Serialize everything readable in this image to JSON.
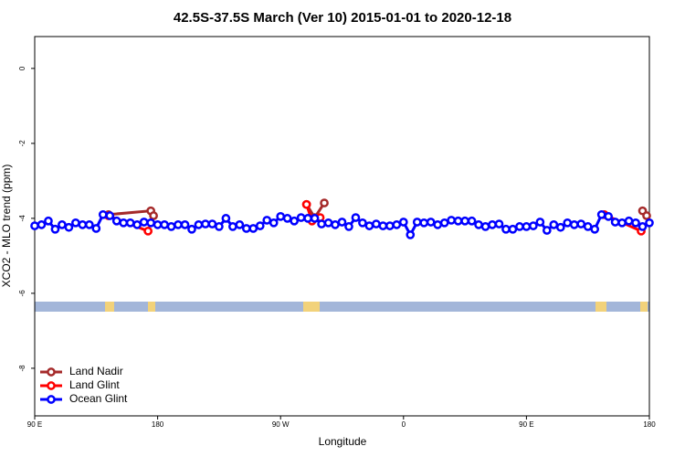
{
  "chart_data": {
    "type": "line",
    "title": "42.5S-37.5S March (Ver 10)   2015-01-01 to 2020-12-18",
    "xlabel": "Longitude",
    "ylabel": "XCO2 - MLO trend (ppm)",
    "xlim": [
      90,
      540
    ],
    "xticks": [
      {
        "value": 90,
        "label": "90 E"
      },
      180,
      {
        "value": 270,
        "label": "90 W"
      },
      {
        "value": 360,
        "label": "0"
      },
      {
        "value": 450,
        "label": "90 E"
      },
      {
        "value": 540,
        "label": "180"
      }
    ],
    "ylim": [
      -9.27,
      0.85
    ],
    "yticks": [
      0,
      -2,
      -4,
      -6,
      -8
    ],
    "legend": "bottom-left",
    "series": [
      {
        "name": "Land Nadir",
        "color": "#a52a2a",
        "x": [
          144,
          175,
          177,
          230,
          289,
          295,
          302,
          420,
          535,
          538
        ],
        "values": [
          -3.9,
          -3.8,
          -3.93,
          null,
          -3.63,
          -3.98,
          -3.59,
          null,
          -3.8,
          -3.93
        ]
      },
      {
        "name": "Land Glint",
        "color": "#ff0000",
        "x": [
          144,
          173,
          230,
          289,
          293,
          299,
          420,
          507,
          534
        ],
        "values": [
          -3.93,
          -4.34,
          null,
          -3.63,
          -4.07,
          -3.98,
          null,
          -3.9,
          -4.34
        ]
      },
      {
        "name": "Ocean Glint",
        "color": "#0000ff",
        "x": [
          90,
          95,
          100,
          105,
          110,
          115,
          120,
          125,
          130,
          135,
          140,
          145,
          150,
          155,
          160,
          165,
          170,
          175,
          180,
          185,
          190,
          195,
          200,
          205,
          210,
          215,
          220,
          225,
          230,
          235,
          240,
          245,
          250,
          255,
          260,
          265,
          270,
          275,
          280,
          285,
          290,
          295,
          300,
          305,
          310,
          315,
          320,
          325,
          330,
          335,
          340,
          345,
          350,
          355,
          360,
          365,
          370,
          375,
          380,
          385,
          390,
          395,
          400,
          405,
          410,
          415,
          420,
          425,
          430,
          435,
          440,
          445,
          450,
          455,
          460,
          465,
          470,
          475,
          480,
          485,
          490,
          495,
          500,
          505,
          510,
          515,
          520,
          525,
          530,
          535,
          540
        ],
        "values": [
          -4.2,
          -4.17,
          -4.07,
          -4.29,
          -4.17,
          -4.24,
          -4.12,
          -4.17,
          -4.17,
          -4.27,
          -3.9,
          -3.93,
          -4.07,
          -4.12,
          -4.12,
          -4.17,
          -4.1,
          -4.12,
          -4.17,
          -4.17,
          -4.22,
          -4.17,
          -4.17,
          -4.29,
          -4.17,
          -4.15,
          -4.15,
          -4.22,
          -4.0,
          -4.22,
          -4.17,
          -4.27,
          -4.27,
          -4.2,
          -4.05,
          -4.12,
          -3.95,
          -4.0,
          -4.07,
          -3.98,
          -4.0,
          -4.0,
          -4.15,
          -4.12,
          -4.17,
          -4.1,
          -4.22,
          -3.98,
          -4.12,
          -4.2,
          -4.15,
          -4.2,
          -4.2,
          -4.17,
          -4.1,
          -4.44,
          -4.1,
          -4.12,
          -4.1,
          -4.17,
          -4.12,
          -4.05,
          -4.07,
          -4.07,
          -4.07,
          -4.17,
          -4.22,
          -4.17,
          -4.15,
          -4.29,
          -4.29,
          -4.22,
          -4.22,
          -4.2,
          -4.1,
          -4.32,
          -4.17,
          -4.24,
          -4.12,
          -4.17,
          -4.15,
          -4.22,
          -4.29,
          -3.9,
          -3.95,
          -4.1,
          -4.12,
          -4.07,
          -4.12,
          -4.22,
          -4.12
        ]
      }
    ]
  }
}
